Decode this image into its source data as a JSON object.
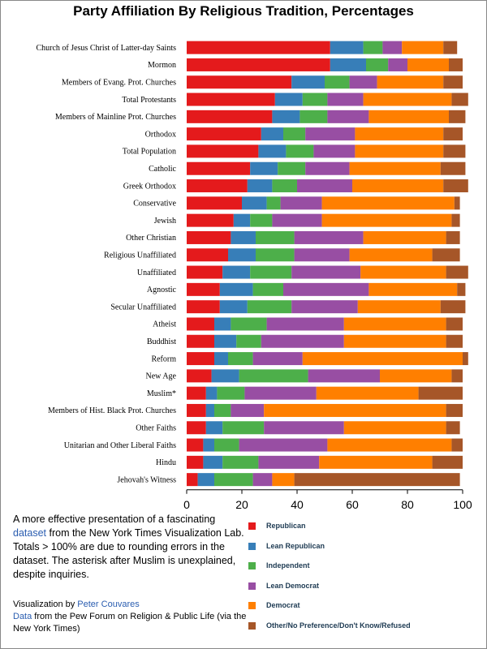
{
  "chart_data": {
    "type": "bar",
    "stacked": true,
    "orientation": "horizontal",
    "title": "Party Affiliation By Religious Tradition, Percentages",
    "xlim": [
      0,
      100
    ],
    "x_ticks": [
      "0",
      "20",
      "40",
      "60",
      "80",
      "100"
    ],
    "grid": false,
    "legend_position": "bottom-right",
    "categories": [
      "Church of Jesus Christ of Latter-day Saints",
      "Mormon",
      "Members of Evang. Prot. Churches",
      "Total Protestants",
      "Members of Mainline Prot. Churches",
      "Orthodox",
      "Total Population",
      "Catholic",
      "Greek Orthodox",
      "Conservative",
      "Jewish",
      "Other Christian",
      "Religious Unaffiliated",
      "Unaffiliated",
      "Agnostic",
      "Secular Unaffiliated",
      "Atheist",
      "Buddhist",
      "Reform",
      "New Age",
      "Muslim*",
      "Members of Hist. Black Prot. Churches",
      "Other Faiths",
      "Unitarian and Other Liberal Faiths",
      "Hindu",
      "Jehovah's Witness"
    ],
    "series": [
      {
        "name": "Republican",
        "color": "#e41a1c",
        "values": [
          52,
          52,
          38,
          32,
          31,
          27,
          26,
          23,
          22,
          20,
          17,
          16,
          15,
          13,
          12,
          12,
          10,
          10,
          10,
          9,
          7,
          7,
          7,
          6,
          6,
          4
        ]
      },
      {
        "name": "Lean Republican",
        "color": "#377eb8",
        "values": [
          12,
          13,
          12,
          10,
          10,
          8,
          10,
          10,
          9,
          9,
          6,
          9,
          10,
          10,
          12,
          10,
          6,
          8,
          5,
          10,
          4,
          3,
          6,
          4,
          7,
          6
        ]
      },
      {
        "name": "Independent",
        "color": "#4daf4a",
        "values": [
          7,
          8,
          9,
          9,
          10,
          8,
          10,
          10,
          9,
          5,
          8,
          14,
          14,
          15,
          11,
          16,
          13,
          9,
          9,
          25,
          10,
          6,
          15,
          9,
          13,
          14
        ]
      },
      {
        "name": "Lean Democrat",
        "color": "#984ea3",
        "values": [
          7,
          7,
          10,
          13,
          15,
          18,
          15,
          16,
          20,
          15,
          18,
          25,
          20,
          25,
          31,
          24,
          28,
          30,
          18,
          26,
          26,
          12,
          29,
          32,
          22,
          7
        ]
      },
      {
        "name": "Democrat",
        "color": "#ff7f00",
        "values": [
          15,
          15,
          24,
          32,
          29,
          32,
          32,
          33,
          33,
          48,
          47,
          30,
          30,
          31,
          32,
          30,
          37,
          37,
          58,
          26,
          37,
          66,
          37,
          45,
          41,
          8
        ]
      },
      {
        "name": "Other/No Preference/Don't Know/Refused",
        "color": "#a65628",
        "values": [
          5,
          5,
          7,
          6,
          6,
          7,
          8,
          9,
          9,
          2,
          3,
          5,
          10,
          8,
          3,
          9,
          6,
          6,
          2,
          4,
          16,
          6,
          5,
          4,
          11,
          60
        ]
      }
    ]
  },
  "description": {
    "before_link": "A more effective presentation of a fascinating ",
    "link": "dataset",
    "after_link": " from the New York Times Visualization Lab.  Totals > 100% are due to rounding errors in the dataset.  The asterisk after Muslim is unexplained, despite inquiries."
  },
  "credits": {
    "line1_prefix": "Visualization by ",
    "author": "Peter Couvares",
    "data_link": "Data",
    "data_suffix": " from the Pew Forum on Religion & Public Life (via the New York Times)"
  }
}
